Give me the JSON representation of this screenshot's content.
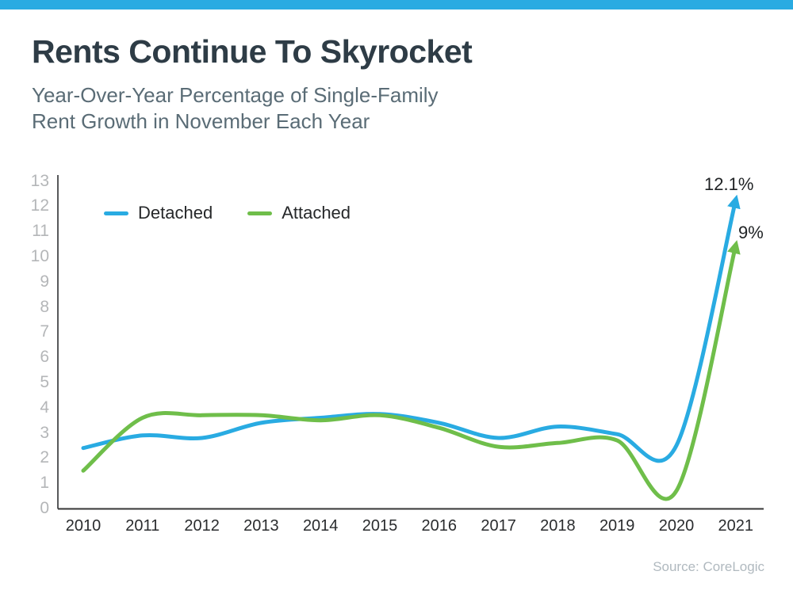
{
  "header": {
    "title": "Rents Continue To Skyrocket",
    "subtitle_line1": "Year-Over-Year Percentage of Single-Family",
    "subtitle_line2": "Rent Growth in November Each Year"
  },
  "source": {
    "text": "Source: CoreLogic"
  },
  "accent_color": "#29abe2",
  "chart_data": {
    "type": "line",
    "title": "Rents Continue To Skyrocket",
    "subtitle": "Year-Over-Year Percentage of Single-Family Rent Growth in November Each Year",
    "categories": [
      "2010",
      "2011",
      "2012",
      "2013",
      "2014",
      "2015",
      "2016",
      "2017",
      "2018",
      "2019",
      "2020",
      "2021"
    ],
    "series": [
      {
        "name": "Detached",
        "color": "#29abe2",
        "values": [
          2.4,
          2.9,
          2.8,
          3.4,
          3.6,
          3.75,
          3.4,
          2.8,
          3.25,
          2.95,
          2.5,
          12.1
        ],
        "end_label": "12.1%"
      },
      {
        "name": "Attached",
        "color": "#6fbe4a",
        "values": [
          1.5,
          3.6,
          3.7,
          3.7,
          3.5,
          3.7,
          3.2,
          2.45,
          2.6,
          2.7,
          0.7,
          9.0
        ],
        "end_label": "9%"
      }
    ],
    "xlabel": "",
    "ylabel": "",
    "ylim": [
      0,
      13
    ],
    "yticks": [
      0,
      1,
      2,
      3,
      4,
      5,
      6,
      7,
      8,
      9,
      10,
      11,
      12,
      13
    ],
    "grid": false,
    "legend_position": "top-left-inside",
    "line_end_style": "arrowhead",
    "arrow_tip_display_values": {
      "Detached": 12.25,
      "Attached": 10.45
    }
  }
}
